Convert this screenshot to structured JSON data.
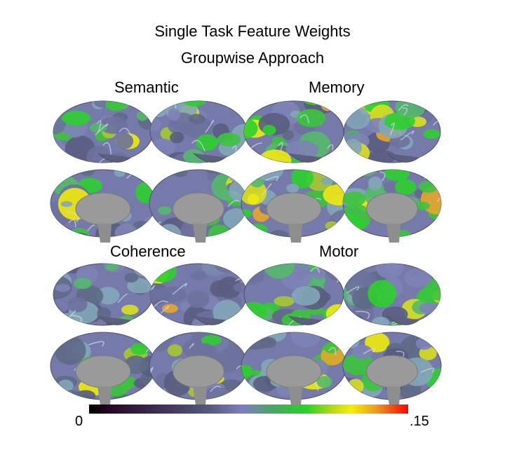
{
  "figure": {
    "title_line1": "Single Task Feature Weights",
    "title_line2": "Groupwise Approach",
    "panels": [
      {
        "label": "Semantic"
      },
      {
        "label": "Memory"
      },
      {
        "label": "Coherence"
      },
      {
        "label": "Motor"
      }
    ]
  },
  "colorbar": {
    "min_label": "0",
    "max_label": ".15",
    "colors": [
      "#000000",
      "#3a2a50",
      "#555a80",
      "#7c80c2",
      "#25d425",
      "#f4ee00",
      "#ec9a20",
      "#ff0000"
    ]
  }
}
